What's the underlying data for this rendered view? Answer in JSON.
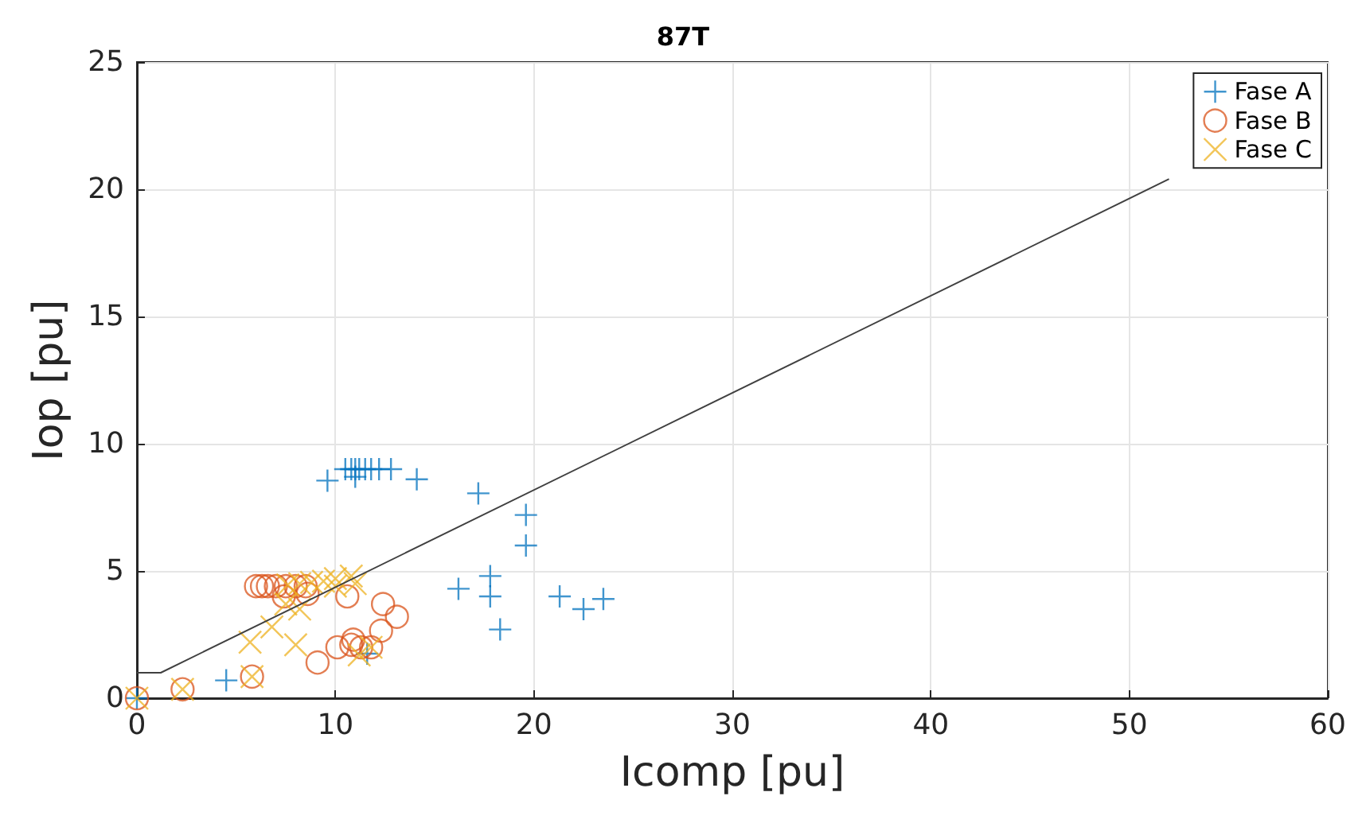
{
  "chart_data": {
    "type": "scatter",
    "title": "87T",
    "xlabel": "Icomp [pu]",
    "ylabel": "Iop [pu]",
    "xlim": [
      0,
      60
    ],
    "xticks": [
      0,
      10,
      20,
      30,
      40,
      50,
      60
    ],
    "ylim": [
      0,
      25
    ],
    "yticks": [
      0,
      5,
      10,
      15,
      20,
      25
    ],
    "grid": true,
    "legend": "top right",
    "series": [
      {
        "name": "Fase A",
        "color": "#0072bd",
        "marker": "plus",
        "x": [
          0,
          4.5,
          9.6,
          10.5,
          10.8,
          11.0,
          11.2,
          11.5,
          11.8,
          12.2,
          12.8,
          11.0,
          14.1,
          17.2,
          19.6,
          19.6,
          16.2,
          17.8,
          17.8,
          18.3,
          21.3,
          22.5,
          23.5,
          11.6
        ],
        "values": [
          0,
          0.7,
          8.55,
          9.0,
          9.0,
          9.0,
          9.0,
          9.0,
          9.0,
          9.0,
          9.0,
          8.7,
          8.6,
          8.05,
          7.2,
          6.0,
          4.3,
          4.8,
          4.0,
          2.7,
          4.0,
          3.5,
          3.9,
          1.75
        ]
      },
      {
        "name": "Fase B",
        "color": "#d95319",
        "marker": "circle",
        "x": [
          0,
          2.3,
          5.8,
          9.1,
          10.1,
          10.8,
          10.9,
          11.3,
          11.8,
          12.3,
          12.4,
          13.1,
          10.6,
          6.0,
          6.3,
          6.6,
          7.0,
          7.5,
          8.0,
          8.5,
          7.4,
          8.6
        ],
        "values": [
          0,
          0.35,
          0.85,
          1.4,
          2.0,
          2.1,
          2.3,
          2.0,
          2.0,
          2.65,
          3.7,
          3.2,
          4.0,
          4.4,
          4.4,
          4.4,
          4.4,
          4.4,
          4.4,
          4.4,
          4.0,
          4.1
        ]
      },
      {
        "name": "Fase C",
        "color": "#edb120",
        "marker": "x",
        "x": [
          0,
          2.3,
          5.8,
          5.7,
          6.8,
          8.0,
          8.2,
          7.5,
          11.8,
          11.2,
          7.6,
          8.2,
          8.8,
          9.4,
          10.0,
          10.8,
          11.0,
          10.0
        ],
        "values": [
          0,
          0.35,
          0.85,
          2.2,
          2.8,
          2.1,
          3.5,
          3.7,
          2.0,
          1.7,
          4.45,
          4.5,
          4.55,
          4.6,
          4.7,
          4.8,
          4.5,
          4.4
        ]
      },
      {
        "type": "line",
        "color": "#404040",
        "marker": "none",
        "x": [
          0,
          1.2,
          52
        ],
        "values": [
          1,
          1,
          20.4
        ]
      }
    ]
  }
}
